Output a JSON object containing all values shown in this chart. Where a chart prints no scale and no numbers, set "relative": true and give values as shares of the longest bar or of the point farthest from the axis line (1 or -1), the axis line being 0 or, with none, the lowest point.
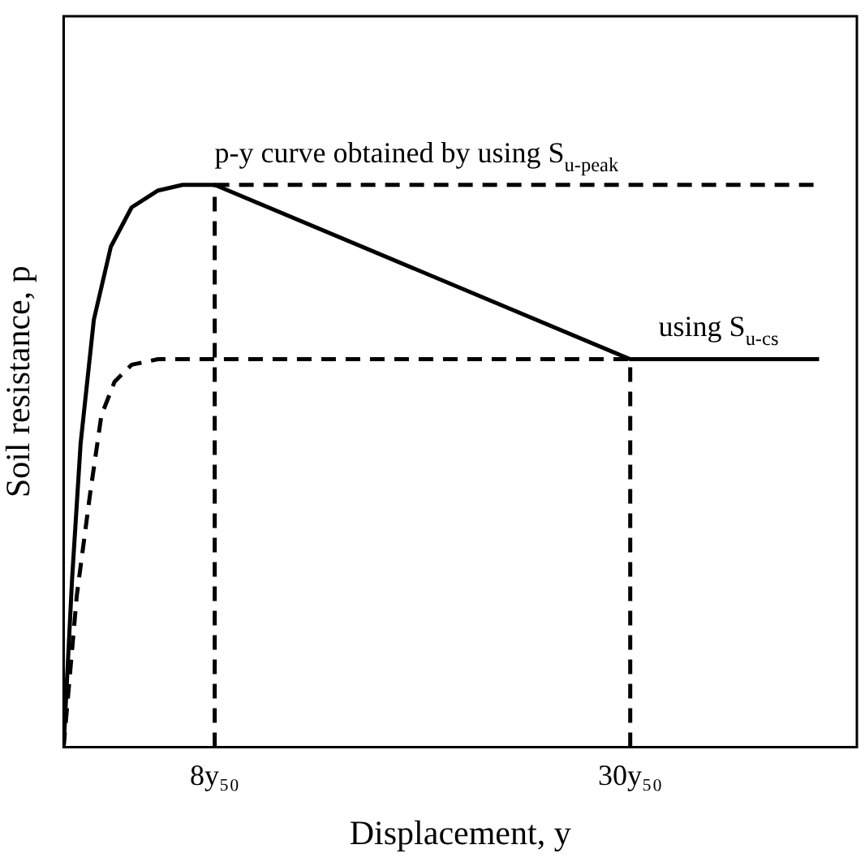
{
  "chart_data": {
    "type": "line",
    "relative": true,
    "xlabel": "Displacement, y",
    "ylabel": "Soil resistance, p",
    "xlim": [
      0,
      42
    ],
    "xticks": [
      {
        "value": 8,
        "label": "8y₅₀"
      },
      {
        "value": 30,
        "label": "30y₅₀"
      }
    ],
    "tick_labels": "x",
    "grid": false,
    "legend": false,
    "marker": "none",
    "series": [
      {
        "color": "#000000",
        "line_style": "solid",
        "x": [
          0,
          0.45,
          0.9,
          1.6,
          2.5,
          3.6,
          5,
          6.3,
          8,
          30,
          40
        ],
        "values": [
          0,
          0.3,
          0.54,
          0.76,
          0.89,
          0.96,
          0.99,
          1,
          1,
          0.69,
          0.69
        ]
      },
      {
        "color": "#000000",
        "line_style": "dashed",
        "x": [
          8,
          40
        ],
        "values": [
          1,
          1
        ]
      },
      {
        "color": "#000000",
        "line_style": "dashed",
        "x": [
          0,
          0.7,
          1.4,
          2,
          2.7,
          3.6,
          5,
          8,
          30
        ],
        "values": [
          0,
          0.27,
          0.45,
          0.59,
          0.65,
          0.68,
          0.69,
          0.69,
          0.69
        ]
      },
      {
        "color": "#000000",
        "line_style": "dashed",
        "x": [
          8,
          8
        ],
        "values": [
          0,
          1
        ]
      },
      {
        "color": "#000000",
        "line_style": "dashed",
        "x": [
          30,
          30
        ],
        "values": [
          0,
          0.69
        ]
      }
    ],
    "annotations": [
      {
        "text": "p-y curve obtained by using S$_{u-peak}$",
        "x": 8,
        "y": 1
      },
      {
        "text": "using S$_{u-cs}$",
        "x": 31.5,
        "y": 0.69
      }
    ]
  }
}
